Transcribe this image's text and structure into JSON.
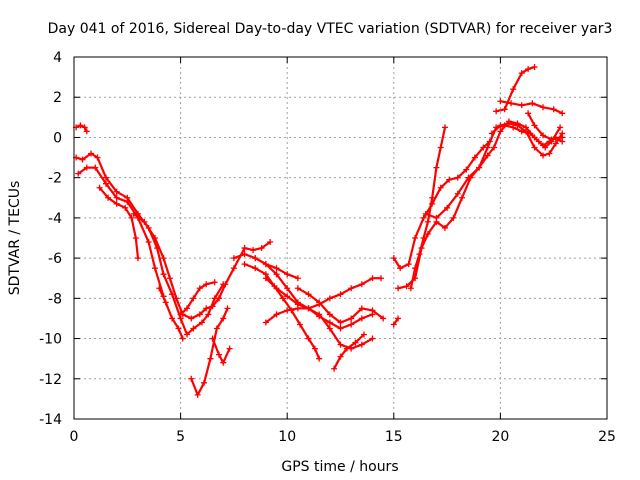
{
  "chart_data": {
    "type": "scatter",
    "title": "Day 041 of 2016, Sidereal Day-to-day VTEC variation (SDTVAR) for receiver yar3",
    "xlabel": "GPS time / hours",
    "ylabel": "SDTVAR / TECUs",
    "xlim": [
      0,
      25
    ],
    "ylim": [
      -14,
      4
    ],
    "xticks": [
      "0",
      "5",
      "10",
      "15",
      "20",
      "25"
    ],
    "yticks": [
      "-14",
      "-12",
      "-10",
      "-8",
      "-6",
      "-4",
      "-2",
      "0",
      "2",
      "4"
    ],
    "grid": true,
    "marker": "plus",
    "color": "#ff0000",
    "series": [
      {
        "points": [
          [
            0.1,
            0.5
          ],
          [
            0.3,
            0.6
          ],
          [
            0.5,
            0.5
          ],
          [
            0.6,
            0.3
          ]
        ]
      },
      {
        "points": [
          [
            0.1,
            -1.0
          ],
          [
            0.4,
            -1.1
          ],
          [
            0.8,
            -0.8
          ],
          [
            1.1,
            -1.0
          ],
          [
            1.5,
            -2.0
          ],
          [
            2.0,
            -2.7
          ],
          [
            2.5,
            -3.0
          ],
          [
            3.0,
            -3.8
          ],
          [
            3.5,
            -4.5
          ],
          [
            3.9,
            -5.5
          ],
          [
            4.2,
            -6.8
          ],
          [
            4.6,
            -7.8
          ],
          [
            5.0,
            -9.0
          ],
          [
            5.3,
            -9.8
          ],
          [
            5.6,
            -9.5
          ],
          [
            6.0,
            -9.2
          ],
          [
            6.3,
            -8.8
          ],
          [
            6.6,
            -8.0
          ],
          [
            7.0,
            -7.3
          ]
        ]
      },
      {
        "points": [
          [
            0.2,
            -1.8
          ],
          [
            0.6,
            -1.5
          ],
          [
            1.0,
            -1.5
          ],
          [
            1.5,
            -2.3
          ],
          [
            2.0,
            -3.0
          ],
          [
            2.5,
            -3.2
          ],
          [
            3.0,
            -4.0
          ],
          [
            3.5,
            -5.2
          ],
          [
            3.8,
            -6.5
          ],
          [
            4.2,
            -7.9
          ]
        ]
      },
      {
        "points": [
          [
            1.2,
            -2.5
          ],
          [
            1.6,
            -3.0
          ],
          [
            2.0,
            -3.3
          ],
          [
            2.4,
            -3.5
          ],
          [
            2.7,
            -4.0
          ],
          [
            2.9,
            -5.0
          ],
          [
            3.0,
            -6.0
          ]
        ]
      },
      {
        "points": [
          [
            2.8,
            -3.8
          ],
          [
            3.3,
            -4.2
          ],
          [
            3.8,
            -5.0
          ],
          [
            4.2,
            -6.0
          ],
          [
            4.5,
            -7.0
          ],
          [
            4.8,
            -8.0
          ],
          [
            5.1,
            -8.8
          ],
          [
            5.5,
            -9.0
          ],
          [
            5.9,
            -8.8
          ],
          [
            6.2,
            -8.5
          ],
          [
            6.5,
            -8.4
          ],
          [
            6.8,
            -8.0
          ]
        ]
      },
      {
        "points": [
          [
            4.0,
            -7.5
          ],
          [
            4.3,
            -8.2
          ],
          [
            4.6,
            -9.0
          ],
          [
            4.9,
            -9.5
          ],
          [
            5.1,
            -10.0
          ]
        ]
      },
      {
        "points": [
          [
            5.0,
            -8.8
          ],
          [
            5.3,
            -8.5
          ],
          [
            5.6,
            -8.0
          ],
          [
            5.9,
            -7.5
          ],
          [
            6.2,
            -7.3
          ],
          [
            6.6,
            -7.2
          ]
        ]
      },
      {
        "points": [
          [
            5.5,
            -12.0
          ],
          [
            5.8,
            -12.8
          ],
          [
            6.1,
            -12.2
          ],
          [
            6.4,
            -11.0
          ],
          [
            6.7,
            -9.5
          ],
          [
            7.0,
            -9.0
          ],
          [
            7.2,
            -8.5
          ]
        ]
      },
      {
        "points": [
          [
            6.5,
            -10.0
          ],
          [
            6.8,
            -10.8
          ],
          [
            7.0,
            -11.2
          ],
          [
            7.3,
            -10.5
          ]
        ]
      },
      {
        "points": [
          [
            6.8,
            -8.0
          ],
          [
            7.1,
            -7.3
          ],
          [
            7.5,
            -6.5
          ],
          [
            8.0,
            -5.5
          ],
          [
            8.4,
            -5.6
          ],
          [
            8.8,
            -5.5
          ],
          [
            9.2,
            -5.2
          ]
        ]
      },
      {
        "points": [
          [
            7.5,
            -6.0
          ],
          [
            8.0,
            -5.8
          ],
          [
            8.5,
            -6.0
          ],
          [
            9.0,
            -6.3
          ],
          [
            9.5,
            -6.5
          ],
          [
            10.0,
            -6.8
          ],
          [
            10.5,
            -7.0
          ]
        ]
      },
      {
        "points": [
          [
            8.0,
            -6.3
          ],
          [
            8.5,
            -6.5
          ],
          [
            9.0,
            -6.8
          ],
          [
            9.4,
            -7.4
          ],
          [
            9.8,
            -8.0
          ],
          [
            10.2,
            -8.6
          ],
          [
            10.6,
            -9.3
          ],
          [
            11.0,
            -10.0
          ],
          [
            11.3,
            -10.5
          ],
          [
            11.5,
            -11.0
          ]
        ]
      },
      {
        "points": [
          [
            8.5,
            -6.0
          ],
          [
            9.0,
            -6.3
          ],
          [
            9.5,
            -6.8
          ],
          [
            10.0,
            -7.5
          ],
          [
            10.5,
            -8.2
          ],
          [
            11.0,
            -8.5
          ],
          [
            11.5,
            -8.8
          ],
          [
            12.0,
            -9.5
          ],
          [
            12.5,
            -10.3
          ],
          [
            13.0,
            -10.5
          ],
          [
            13.5,
            -10.3
          ],
          [
            14.0,
            -10.0
          ]
        ]
      },
      {
        "points": [
          [
            9.0,
            -7.0
          ],
          [
            9.5,
            -7.5
          ],
          [
            10.0,
            -7.9
          ],
          [
            10.5,
            -8.3
          ],
          [
            11.0,
            -8.5
          ],
          [
            11.5,
            -8.9
          ],
          [
            12.0,
            -9.2
          ],
          [
            12.5,
            -9.5
          ],
          [
            13.0,
            -9.3
          ],
          [
            13.5,
            -9.0
          ],
          [
            14.0,
            -8.8
          ]
        ]
      },
      {
        "points": [
          [
            9.0,
            -9.2
          ],
          [
            9.5,
            -8.8
          ],
          [
            10.0,
            -8.6
          ],
          [
            10.5,
            -8.5
          ],
          [
            11.0,
            -8.5
          ],
          [
            11.5,
            -8.3
          ],
          [
            12.0,
            -8.0
          ],
          [
            12.5,
            -7.8
          ],
          [
            13.0,
            -7.5
          ],
          [
            13.5,
            -7.3
          ],
          [
            14.0,
            -7.0
          ],
          [
            14.4,
            -7.0
          ]
        ]
      },
      {
        "points": [
          [
            10.5,
            -7.5
          ],
          [
            11.0,
            -7.8
          ],
          [
            11.5,
            -8.2
          ],
          [
            12.0,
            -8.8
          ],
          [
            12.5,
            -9.2
          ],
          [
            13.0,
            -9.0
          ],
          [
            13.5,
            -8.5
          ],
          [
            14.0,
            -8.6
          ],
          [
            14.5,
            -9.0
          ]
        ]
      },
      {
        "points": [
          [
            12.2,
            -11.5
          ],
          [
            12.5,
            -10.9
          ],
          [
            12.8,
            -10.5
          ],
          [
            13.2,
            -10.2
          ],
          [
            13.6,
            -9.8
          ]
        ]
      },
      {
        "points": [
          [
            15.0,
            -9.3
          ],
          [
            15.2,
            -9.0
          ]
        ]
      },
      {
        "points": [
          [
            15.0,
            -6.0
          ],
          [
            15.3,
            -6.5
          ],
          [
            15.7,
            -6.3
          ],
          [
            16.0,
            -5.0
          ],
          [
            16.4,
            -4.0
          ],
          [
            16.8,
            -3.3
          ],
          [
            17.2,
            -2.5
          ],
          [
            17.6,
            -2.1
          ],
          [
            18.0,
            -2.0
          ],
          [
            18.4,
            -1.6
          ],
          [
            18.8,
            -1.0
          ],
          [
            19.2,
            -0.5
          ],
          [
            19.5,
            -0.2
          ]
        ]
      },
      {
        "points": [
          [
            15.2,
            -7.5
          ],
          [
            15.6,
            -7.4
          ],
          [
            16.0,
            -7.0
          ],
          [
            16.3,
            -5.5
          ],
          [
            16.6,
            -4.8
          ],
          [
            17.0,
            -4.2
          ],
          [
            17.4,
            -4.5
          ],
          [
            17.8,
            -4.0
          ],
          [
            18.2,
            -3.0
          ],
          [
            18.6,
            -2.0
          ],
          [
            19.0,
            -1.5
          ],
          [
            19.4,
            -0.5
          ],
          [
            19.8,
            0.5
          ],
          [
            20.2,
            0.6
          ],
          [
            20.6,
            0.5
          ],
          [
            21.0,
            0.3
          ],
          [
            21.4,
            0.2
          ],
          [
            21.8,
            -0.2
          ],
          [
            22.1,
            -0.5
          ],
          [
            22.4,
            -0.2
          ],
          [
            22.8,
            0.5
          ]
        ]
      },
      {
        "points": [
          [
            15.8,
            -7.5
          ],
          [
            16.0,
            -6.5
          ],
          [
            16.2,
            -5.8
          ],
          [
            16.4,
            -5.0
          ],
          [
            16.6,
            -4.2
          ],
          [
            16.8,
            -3.0
          ],
          [
            17.0,
            -1.5
          ],
          [
            17.2,
            -0.5
          ],
          [
            17.4,
            0.5
          ]
        ]
      },
      {
        "points": [
          [
            16.5,
            -3.8
          ],
          [
            17.0,
            -4.0
          ],
          [
            17.5,
            -3.5
          ],
          [
            18.0,
            -2.8
          ],
          [
            18.5,
            -2.0
          ],
          [
            19.0,
            -1.5
          ],
          [
            19.4,
            -0.9
          ],
          [
            19.7,
            -0.5
          ],
          [
            20.0,
            0.3
          ],
          [
            20.4,
            0.8
          ],
          [
            20.8,
            0.7
          ],
          [
            21.2,
            0.5
          ],
          [
            21.6,
            0.0
          ],
          [
            22.0,
            -0.4
          ],
          [
            22.3,
            -0.2
          ],
          [
            22.6,
            0.0
          ],
          [
            22.9,
            -0.2
          ]
        ]
      },
      {
        "points": [
          [
            19.6,
            0.2
          ],
          [
            20.0,
            0.6
          ],
          [
            20.4,
            0.7
          ],
          [
            20.8,
            0.6
          ],
          [
            21.2,
            0.3
          ],
          [
            21.6,
            -0.5
          ],
          [
            22.0,
            -0.9
          ],
          [
            22.3,
            -0.8
          ],
          [
            22.6,
            -0.3
          ],
          [
            22.9,
            0.2
          ]
        ]
      },
      {
        "points": [
          [
            19.8,
            1.3
          ],
          [
            20.2,
            1.4
          ],
          [
            20.6,
            2.4
          ],
          [
            21.0,
            3.2
          ],
          [
            21.3,
            3.4
          ],
          [
            21.6,
            3.5
          ]
        ]
      },
      {
        "points": [
          [
            20.0,
            1.8
          ],
          [
            20.5,
            1.7
          ],
          [
            21.0,
            1.6
          ],
          [
            21.5,
            1.7
          ],
          [
            22.0,
            1.5
          ],
          [
            22.5,
            1.4
          ],
          [
            22.9,
            1.2
          ]
        ]
      },
      {
        "points": [
          [
            21.3,
            1.2
          ],
          [
            21.6,
            0.6
          ],
          [
            22.0,
            0.1
          ],
          [
            22.4,
            -0.1
          ],
          [
            22.9,
            0.0
          ]
        ]
      }
    ]
  }
}
